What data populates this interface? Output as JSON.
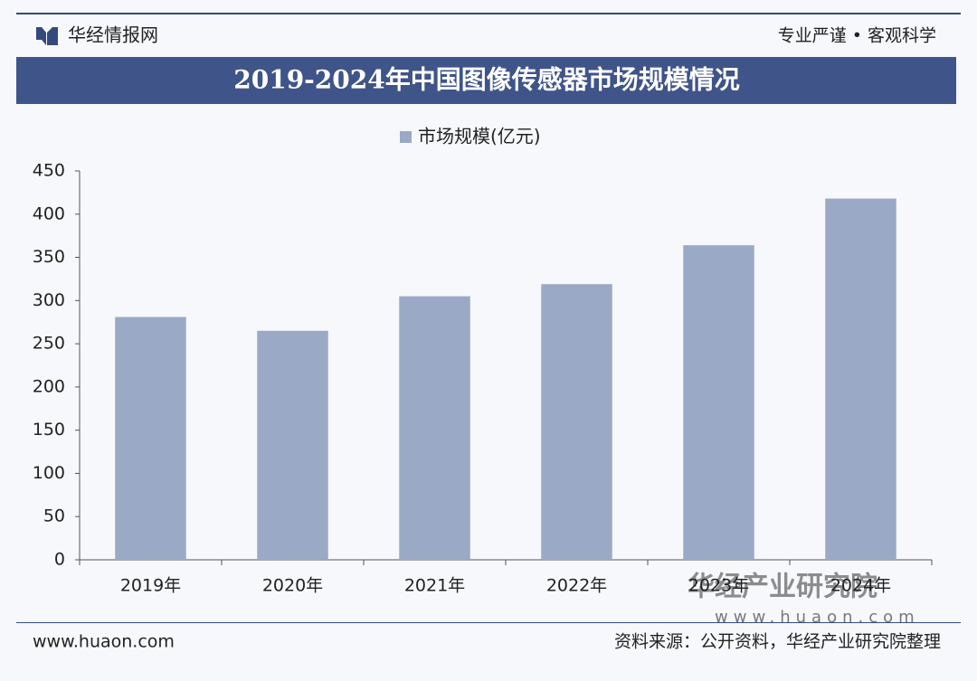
{
  "header": {
    "brand": "华经情报网",
    "tagline": "专业严谨 • 客观科学"
  },
  "chart_data": {
    "type": "bar",
    "title": "2019-2024年中国图像传感器市场规模情况",
    "categories": [
      "2019年",
      "2020年",
      "2021年",
      "2022年",
      "2023年",
      "2024年"
    ],
    "series": [
      {
        "name": "市场规模(亿元)",
        "color": "#9aaac6",
        "values": [
          281,
          265,
          305,
          319,
          364,
          418
        ]
      }
    ],
    "ylim": [
      0,
      450
    ],
    "yticks": [
      0,
      50,
      100,
      150,
      200,
      250,
      300,
      350,
      400,
      450
    ],
    "grid": false,
    "legend": "top"
  },
  "watermark": {
    "name": "华经产业研究院",
    "site": "www.huaon.com"
  },
  "footer": {
    "website": "www.huaon.com",
    "source": "资料来源：公开资料，华经产业研究院整理"
  }
}
